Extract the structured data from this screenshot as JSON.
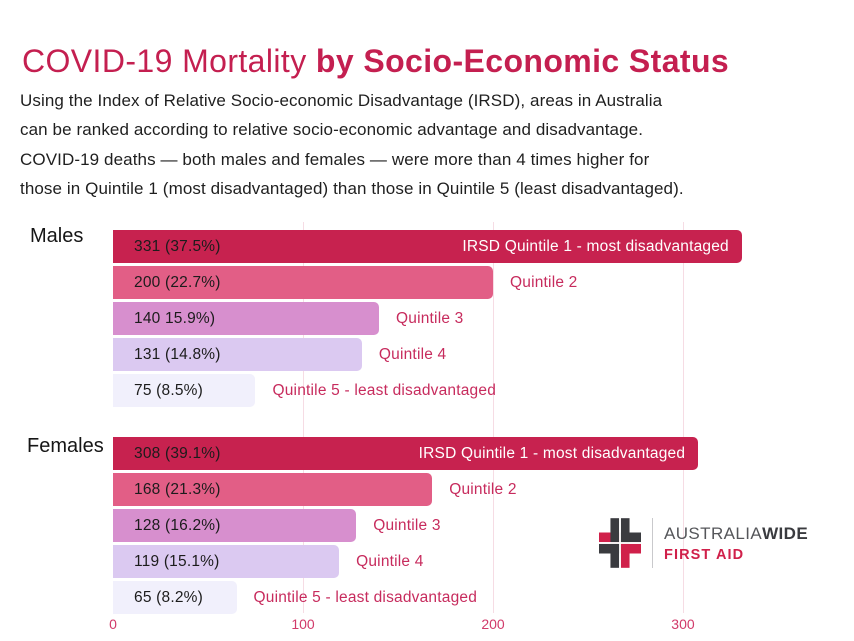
{
  "title": {
    "light": "COVID-19 Mortality ",
    "bold": "by Socio-Economic Status"
  },
  "intro_lines": [
    "Using the Index of Relative Socio-economic Disadvantage (IRSD), areas in Australia",
    "can be ranked according to relative socio-economic advantage and disadvantage.",
    "COVID-19 deaths — both males and females — were more than 4 times higher for",
    "those in Quintile 1 (most disadvantaged) than those in Quintile 5 (least disadvantaged)."
  ],
  "colors": {
    "background": "#ffffff",
    "title_color": "#C41F50",
    "text_dark": "#1F1F1F",
    "value_color": "#1C1C1C",
    "label_pink": "#C72B5D",
    "inside_label_color": "#FFFFFF",
    "tick_color": "#D13A6A",
    "grid_color": "#F6DCE4",
    "logo_gray": "#55565A",
    "logo_dark": "#3A3B3F",
    "logo_red": "#D0204A"
  },
  "chart_data": {
    "type": "bar",
    "orientation": "horizontal",
    "title": "COVID-19 Mortality by Socio-Economic Status",
    "x_axis": {
      "tick_labels": [
        "0",
        "100",
        "200",
        "300"
      ],
      "tick_values": [
        0,
        100,
        200,
        300
      ],
      "max": 380,
      "grid": true
    },
    "groups": [
      {
        "label": "Males",
        "bars": [
          {
            "value": 331,
            "value_label": "331 (37.5%)",
            "category": "IRSD Quintile 1 - most disadvantaged",
            "color": "#C7224F",
            "category_placement": "inside"
          },
          {
            "value": 200,
            "value_label": "200 (22.7%)",
            "category": "Quintile 2",
            "color": "#E25E86",
            "category_placement": "outside"
          },
          {
            "value": 140,
            "value_label": "140 15.9%)",
            "category": "Quintile 3",
            "color": "#D78FCE",
            "category_placement": "outside"
          },
          {
            "value": 131,
            "value_label": "131 (14.8%)",
            "category": "Quintile 4",
            "color": "#DBC9F1",
            "category_placement": "outside"
          },
          {
            "value": 75,
            "value_label": "75 (8.5%)",
            "category": "Quintile 5 - least disadvantaged",
            "color": "#F1F0FC",
            "category_placement": "outside"
          }
        ]
      },
      {
        "label": "Females",
        "bars": [
          {
            "value": 308,
            "value_label": "308 (39.1%)",
            "category": "IRSD Quintile 1 - most disadvantaged",
            "color": "#C7224F",
            "category_placement": "inside"
          },
          {
            "value": 168,
            "value_label": "168 (21.3%)",
            "category": "Quintile 2",
            "color": "#E25E86",
            "category_placement": "outside"
          },
          {
            "value": 128,
            "value_label": "128 (16.2%)",
            "category": "Quintile 3",
            "color": "#D78FCE",
            "category_placement": "outside"
          },
          {
            "value": 119,
            "value_label": "119 (15.1%)",
            "category": "Quintile 4",
            "color": "#DBC9F1",
            "category_placement": "outside"
          },
          {
            "value": 65,
            "value_label": "65 (8.2%)",
            "category": "Quintile 5 - least disadvantaged",
            "color": "#F1F0FC",
            "category_placement": "outside"
          }
        ]
      }
    ]
  },
  "logo": {
    "name": "Australia Wide First Aid",
    "text_primary": "AUSTRALIA",
    "text_bold": "WIDE",
    "text_secondary": "FIRST AID"
  }
}
